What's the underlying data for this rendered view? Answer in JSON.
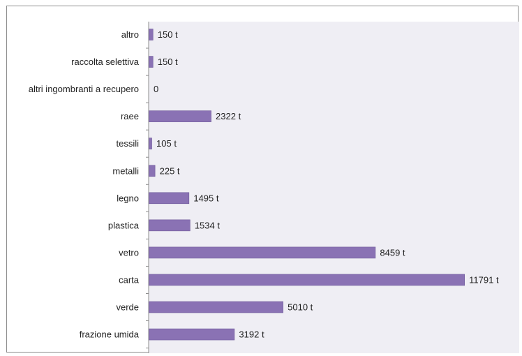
{
  "chart_data": {
    "type": "bar",
    "orientation": "horizontal",
    "categories": [
      "altro",
      "raccolta selettiva",
      "altri ingombranti a recupero",
      "raee",
      "tessili",
      "metalli",
      "legno",
      "plastica",
      "vetro",
      "carta",
      "verde",
      "frazione umida"
    ],
    "values": [
      150,
      150,
      0,
      2322,
      105,
      225,
      1495,
      1534,
      8459,
      11791,
      5010,
      3192
    ],
    "data_labels": [
      "150 t",
      "150 t",
      "0",
      "2322 t",
      "105 t",
      "225 t",
      "1495 t",
      "1534 t",
      "8459 t",
      "11791 t",
      "5010 t",
      "3192 t"
    ],
    "xlim": [
      0,
      13000
    ],
    "grid": false,
    "legend": "none",
    "colors": {
      "bar": "#8a72b4",
      "bar_edge": "#6f5a9a",
      "plot_bg": "#efeef4",
      "axis": "#8c8c8c",
      "frame": "#8c8c8c"
    }
  }
}
